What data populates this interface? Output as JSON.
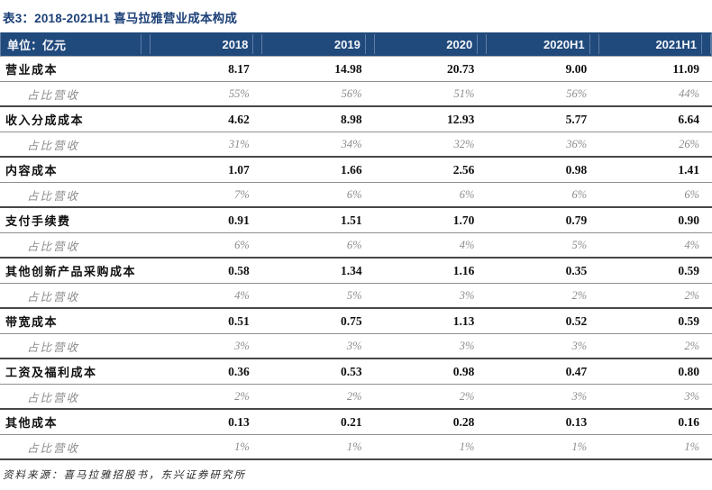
{
  "title": "表3：2018-2021H1 喜马拉雅营业成本构成",
  "table": {
    "unit_label": "单位：亿元",
    "columns": [
      "2018",
      "2019",
      "2020",
      "2020H1",
      "2021H1"
    ],
    "ratio_label": "占比营收",
    "rows": [
      {
        "label": "营业成本",
        "values": [
          "8.17",
          "14.98",
          "20.73",
          "9.00",
          "11.09"
        ],
        "ratios": [
          "55%",
          "56%",
          "51%",
          "56%",
          "44%"
        ]
      },
      {
        "label": "收入分成成本",
        "values": [
          "4.62",
          "8.98",
          "12.93",
          "5.77",
          "6.64"
        ],
        "ratios": [
          "31%",
          "34%",
          "32%",
          "36%",
          "26%"
        ]
      },
      {
        "label": "内容成本",
        "values": [
          "1.07",
          "1.66",
          "2.56",
          "0.98",
          "1.41"
        ],
        "ratios": [
          "7%",
          "6%",
          "6%",
          "6%",
          "6%"
        ]
      },
      {
        "label": "支付手续费",
        "values": [
          "0.91",
          "1.51",
          "1.70",
          "0.79",
          "0.90"
        ],
        "ratios": [
          "6%",
          "6%",
          "4%",
          "5%",
          "4%"
        ]
      },
      {
        "label": "其他创新产品采购成本",
        "values": [
          "0.58",
          "1.34",
          "1.16",
          "0.35",
          "0.59"
        ],
        "ratios": [
          "4%",
          "5%",
          "3%",
          "2%",
          "2%"
        ]
      },
      {
        "label": "带宽成本",
        "values": [
          "0.51",
          "0.75",
          "1.13",
          "0.52",
          "0.59"
        ],
        "ratios": [
          "3%",
          "3%",
          "3%",
          "3%",
          "2%"
        ]
      },
      {
        "label": "工资及福利成本",
        "values": [
          "0.36",
          "0.53",
          "0.98",
          "0.47",
          "0.80"
        ],
        "ratios": [
          "2%",
          "2%",
          "2%",
          "3%",
          "3%"
        ]
      },
      {
        "label": "其他成本",
        "values": [
          "0.13",
          "0.21",
          "0.28",
          "0.13",
          "0.16"
        ],
        "ratios": [
          "1%",
          "1%",
          "1%",
          "1%",
          "1%"
        ]
      }
    ]
  },
  "footer": {
    "source": "资料来源：喜马拉雅招股书，东兴证券研究所"
  },
  "colors": {
    "header_bg": "#20497c",
    "header_separator": "#5f7ea6",
    "title_text": "#1c4077",
    "dark_rule": "#474747",
    "light_rule": "#8f8f8f",
    "ratio_text": "#8c8c8c"
  },
  "chart_data": {
    "type": "table",
    "title": "2018-2021H1 喜马拉雅营业成本构成 (单位：亿元)",
    "categories": [
      "2018",
      "2019",
      "2020",
      "2020H1",
      "2021H1"
    ],
    "series": [
      {
        "name": "营业成本",
        "values": [
          8.17,
          14.98,
          20.73,
          9.0,
          11.09
        ],
        "pct_of_revenue": [
          "55%",
          "56%",
          "51%",
          "56%",
          "44%"
        ]
      },
      {
        "name": "收入分成成本",
        "values": [
          4.62,
          8.98,
          12.93,
          5.77,
          6.64
        ],
        "pct_of_revenue": [
          "31%",
          "34%",
          "32%",
          "36%",
          "26%"
        ]
      },
      {
        "name": "内容成本",
        "values": [
          1.07,
          1.66,
          2.56,
          0.98,
          1.41
        ],
        "pct_of_revenue": [
          "7%",
          "6%",
          "6%",
          "6%",
          "6%"
        ]
      },
      {
        "name": "支付手续费",
        "values": [
          0.91,
          1.51,
          1.7,
          0.79,
          0.9
        ],
        "pct_of_revenue": [
          "6%",
          "6%",
          "4%",
          "5%",
          "4%"
        ]
      },
      {
        "name": "其他创新产品采购成本",
        "values": [
          0.58,
          1.34,
          1.16,
          0.35,
          0.59
        ],
        "pct_of_revenue": [
          "4%",
          "5%",
          "3%",
          "2%",
          "2%"
        ]
      },
      {
        "name": "带宽成本",
        "values": [
          0.51,
          0.75,
          1.13,
          0.52,
          0.59
        ],
        "pct_of_revenue": [
          "3%",
          "3%",
          "3%",
          "3%",
          "2%"
        ]
      },
      {
        "name": "工资及福利成本",
        "values": [
          0.36,
          0.53,
          0.98,
          0.47,
          0.8
        ],
        "pct_of_revenue": [
          "2%",
          "2%",
          "2%",
          "3%",
          "3%"
        ]
      },
      {
        "name": "其他成本",
        "values": [
          0.13,
          0.21,
          0.28,
          0.13,
          0.16
        ],
        "pct_of_revenue": [
          "1%",
          "1%",
          "1%",
          "1%",
          "1%"
        ]
      }
    ]
  }
}
